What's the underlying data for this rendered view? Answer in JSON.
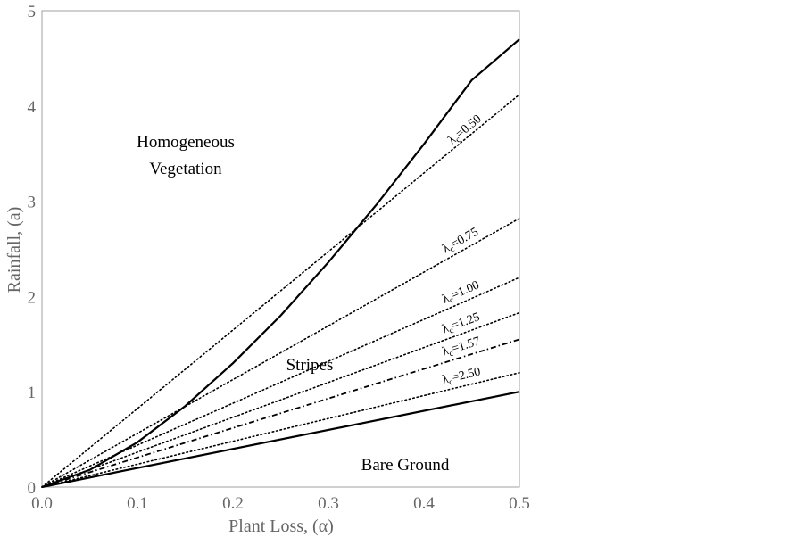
{
  "chart_data": {
    "type": "line",
    "xlabel": "Plant Loss,  (α)",
    "ylabel": "Rainfall,  (a)",
    "xlim": [
      0,
      0.5
    ],
    "ylim": [
      0,
      5
    ],
    "x_ticks": [
      "0.0",
      "0.1",
      "0.2",
      "0.3",
      "0.4",
      "0.5"
    ],
    "y_ticks": [
      "0",
      "1",
      "2",
      "3",
      "4",
      "5"
    ],
    "grid": false,
    "regions": {
      "top": "Homogeneous",
      "top2": "Vegetation",
      "middle": "Stripes",
      "bottom": "Bare Ground"
    },
    "series": [
      {
        "style": "solid",
        "x": [
          0,
          0.05,
          0.1,
          0.15,
          0.2,
          0.25,
          0.3,
          0.35,
          0.4,
          0.45,
          0.5
        ],
        "y": [
          0,
          0.18,
          0.47,
          0.85,
          1.3,
          1.8,
          2.36,
          2.96,
          3.6,
          4.27,
          4.7
        ]
      },
      {
        "style": "solid",
        "x": [
          0,
          0.5
        ],
        "y": [
          0,
          1.0
        ]
      },
      {
        "name": "λ_c=0.50",
        "label": "=0.50",
        "style": "dotted",
        "x": [
          0,
          0.5
        ],
        "y": [
          0,
          4.12
        ]
      },
      {
        "name": "λ_c=0.75",
        "label": "=0.75",
        "style": "dotted",
        "x": [
          0,
          0.5
        ],
        "y": [
          0,
          2.82
        ]
      },
      {
        "name": "λ_c=1.00",
        "label": "=1.00",
        "style": "dotted",
        "x": [
          0,
          0.5
        ],
        "y": [
          0,
          2.2
        ]
      },
      {
        "name": "λ_c=1.25",
        "label": "=1.25",
        "style": "dotted",
        "x": [
          0,
          0.5
        ],
        "y": [
          0,
          1.83
        ]
      },
      {
        "name": "λ_c=1.57",
        "label": "=1.57",
        "style": "dashdot",
        "x": [
          0,
          0.5
        ],
        "y": [
          0,
          1.55
        ]
      },
      {
        "name": "λ_c=2.50",
        "label": "=2.50",
        "style": "dotted",
        "x": [
          0,
          0.5
        ],
        "y": [
          0,
          1.2
        ]
      }
    ],
    "lambda_symbol": "λ",
    "lambda_sub": "c"
  }
}
